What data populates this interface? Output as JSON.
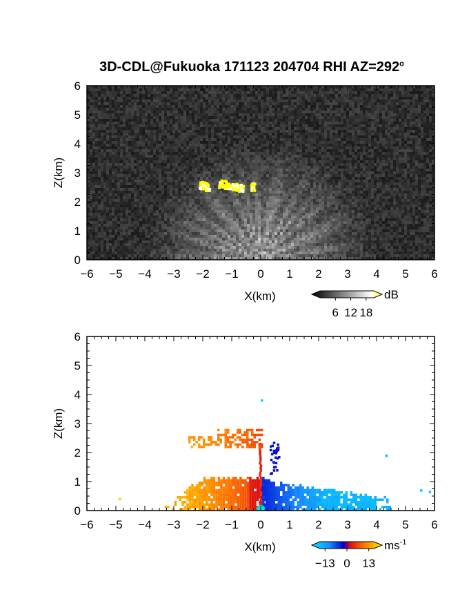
{
  "title": "3D-CDL@Fukuoka 171123 204704 RHI AZ=292",
  "title_superscript": "o",
  "chart_data": [
    {
      "type": "heatmap",
      "name": "snr-panel",
      "xlabel": "X(km)",
      "ylabel": "Z(km)",
      "xlim": [
        -6,
        6
      ],
      "ylim": [
        0,
        6
      ],
      "xticks": [
        "-6",
        "-5",
        "-4",
        "-3",
        "-2",
        "-1",
        "0",
        "1",
        "2",
        "3",
        "4",
        "5",
        "6"
      ],
      "yticks": [
        "0",
        "1",
        "2",
        "3",
        "4",
        "5",
        "6"
      ],
      "background": "#1e1e1e",
      "colorbar": {
        "unit": "dB",
        "ticks": [
          "6",
          "12",
          "18"
        ],
        "range": [
          0,
          21
        ]
      },
      "features": [
        {
          "kind": "cloud",
          "color": "#ffff00",
          "x": [
            -2.1,
            -1.2,
            -0.6,
            -0.3
          ],
          "z": [
            2.55,
            2.65,
            2.6,
            2.55
          ]
        },
        {
          "kind": "near-ground fan",
          "origin": [
            0,
            0
          ],
          "max_range_km": 3.5
        }
      ]
    },
    {
      "type": "heatmap",
      "name": "velocity-panel",
      "xlabel": "X(km)",
      "ylabel": "Z(km)",
      "xlim": [
        -6,
        6
      ],
      "ylim": [
        0,
        6
      ],
      "xticks": [
        "-6",
        "-5",
        "-4",
        "-3",
        "-2",
        "-1",
        "0",
        "1",
        "2",
        "3",
        "4",
        "5",
        "6"
      ],
      "yticks": [
        "0",
        "1",
        "2",
        "3",
        "4",
        "5",
        "6"
      ],
      "background": "#ffffff",
      "colorbar": {
        "unit": "ms",
        "unit_exponent": "-1",
        "ticks": [
          "-13",
          "0",
          "13"
        ],
        "range": [
          -16,
          16
        ]
      },
      "approx_extent": {
        "negative_x_warm": {
          "x": [
            -3.3,
            0
          ],
          "z": [
            0,
            1.1
          ],
          "velocity_ms": [
            3,
            13
          ]
        },
        "positive_x_cool": {
          "x": [
            0,
            6
          ],
          "z": [
            0,
            1.0
          ],
          "velocity_ms": [
            -13,
            -3
          ]
        },
        "cloud_layer": {
          "x": [
            -2.5,
            0
          ],
          "z": [
            2.2,
            2.8
          ],
          "velocity_ms": [
            4,
            10
          ]
        }
      }
    }
  ],
  "colors": {
    "cloud": "#ffff00",
    "frame": "#000000"
  }
}
